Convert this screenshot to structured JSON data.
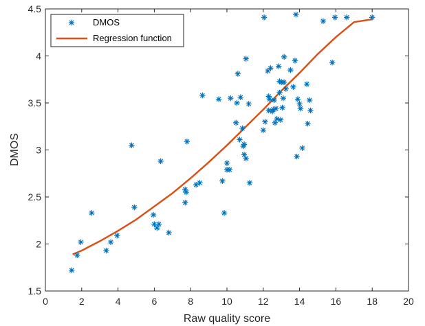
{
  "chart_data": {
    "type": "scatter",
    "title": "",
    "xlabel": "Raw quality score",
    "ylabel": "DMOS",
    "xlim": [
      0,
      20
    ],
    "ylim": [
      1.5,
      4.5
    ],
    "xticks": [
      "0",
      "2",
      "4",
      "6",
      "8",
      "10",
      "12",
      "14",
      "16",
      "18",
      "20"
    ],
    "yticks": [
      "1.5",
      "2",
      "2.5",
      "3",
      "3.5",
      "4",
      "4.5"
    ],
    "grid": false,
    "legend_position": "top-left",
    "series": [
      {
        "name": "DMOS",
        "kind": "scatter",
        "marker": "asterisk",
        "color": "#0072BD",
        "points": [
          [
            1.45,
            1.72
          ],
          [
            1.75,
            1.88
          ],
          [
            1.95,
            2.02
          ],
          [
            2.55,
            2.33
          ],
          [
            3.35,
            1.93
          ],
          [
            3.6,
            2.02
          ],
          [
            3.95,
            2.09
          ],
          [
            4.75,
            3.05
          ],
          [
            4.9,
            2.39
          ],
          [
            5.95,
            2.31
          ],
          [
            6.0,
            2.21
          ],
          [
            6.15,
            2.17
          ],
          [
            6.25,
            2.21
          ],
          [
            6.35,
            2.88
          ],
          [
            6.8,
            2.12
          ],
          [
            7.7,
            2.58
          ],
          [
            7.7,
            2.44
          ],
          [
            7.75,
            2.55
          ],
          [
            7.8,
            3.09
          ],
          [
            8.3,
            2.63
          ],
          [
            8.5,
            2.65
          ],
          [
            8.65,
            3.58
          ],
          [
            9.55,
            3.54
          ],
          [
            9.75,
            2.67
          ],
          [
            9.85,
            2.33
          ],
          [
            10.0,
            2.86
          ],
          [
            10.0,
            2.79
          ],
          [
            10.15,
            2.79
          ],
          [
            10.2,
            3.55
          ],
          [
            10.5,
            3.29
          ],
          [
            10.55,
            3.5
          ],
          [
            10.6,
            3.81
          ],
          [
            10.7,
            3.11
          ],
          [
            10.75,
            3.56
          ],
          [
            10.85,
            3.23
          ],
          [
            10.9,
            3.04
          ],
          [
            10.95,
            3.06
          ],
          [
            10.95,
            2.95
          ],
          [
            11.05,
            3.97
          ],
          [
            11.05,
            2.91
          ],
          [
            11.2,
            3.49
          ],
          [
            11.25,
            2.65
          ],
          [
            12.0,
            3.21
          ],
          [
            12.05,
            4.41
          ],
          [
            12.1,
            3.3
          ],
          [
            12.25,
            3.84
          ],
          [
            12.3,
            3.42
          ],
          [
            12.3,
            3.57
          ],
          [
            12.35,
            3.54
          ],
          [
            12.4,
            3.87
          ],
          [
            12.5,
            3.41
          ],
          [
            12.55,
            3.43
          ],
          [
            12.6,
            3.53
          ],
          [
            12.65,
            3.29
          ],
          [
            12.7,
            3.44
          ],
          [
            12.75,
            3.33
          ],
          [
            12.85,
            3.89
          ],
          [
            12.9,
            3.73
          ],
          [
            12.9,
            3.61
          ],
          [
            12.95,
            3.32
          ],
          [
            13.0,
            3.72
          ],
          [
            13.05,
            3.45
          ],
          [
            13.1,
            3.55
          ],
          [
            13.15,
            3.99
          ],
          [
            13.15,
            3.72
          ],
          [
            13.25,
            3.65
          ],
          [
            13.5,
            3.85
          ],
          [
            13.65,
            3.67
          ],
          [
            13.75,
            3.95
          ],
          [
            13.8,
            4.44
          ],
          [
            13.85,
            2.93
          ],
          [
            13.9,
            3.54
          ],
          [
            14.0,
            3.49
          ],
          [
            14.05,
            3.44
          ],
          [
            14.15,
            3.02
          ],
          [
            14.4,
            3.7
          ],
          [
            14.45,
            3.28
          ],
          [
            14.55,
            3.53
          ],
          [
            14.6,
            3.42
          ],
          [
            15.3,
            4.37
          ],
          [
            15.8,
            3.93
          ],
          [
            15.95,
            4.41
          ],
          [
            16.6,
            4.41
          ],
          [
            18.0,
            4.41
          ]
        ]
      },
      {
        "name": "Regression function",
        "kind": "line",
        "color": "#D95319",
        "points": [
          [
            1.5,
            1.89
          ],
          [
            2,
            1.93
          ],
          [
            3,
            2.03
          ],
          [
            4,
            2.14
          ],
          [
            5,
            2.26
          ],
          [
            6,
            2.4
          ],
          [
            7,
            2.54
          ],
          [
            8,
            2.7
          ],
          [
            9,
            2.87
          ],
          [
            10,
            3.05
          ],
          [
            11,
            3.24
          ],
          [
            12,
            3.43
          ],
          [
            13,
            3.63
          ],
          [
            14,
            3.82
          ],
          [
            15,
            4.02
          ],
          [
            16,
            4.2
          ],
          [
            17,
            4.36
          ],
          [
            18,
            4.39
          ]
        ]
      }
    ]
  }
}
